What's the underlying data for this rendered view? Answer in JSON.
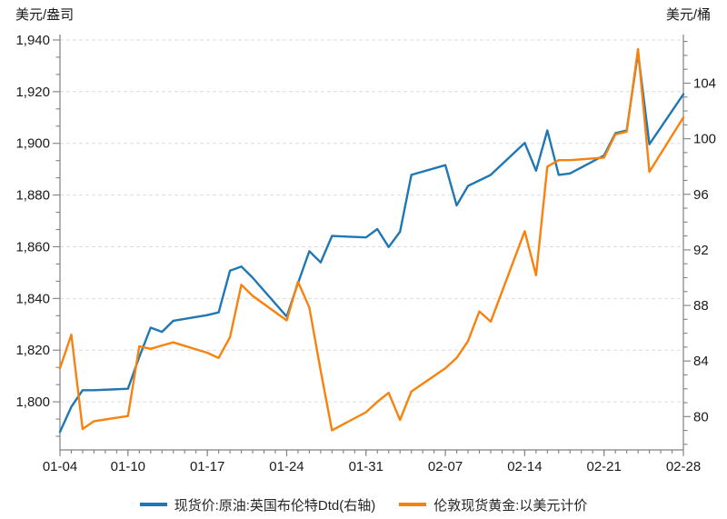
{
  "axis_titles": {
    "left": "美元/盎司",
    "right": "美元/桶"
  },
  "legend": {
    "items": [
      {
        "label": "现货价:原油:英国布伦特Dtd(右轴)",
        "color": "#1f77b4"
      },
      {
        "label": "伦敦现货黄金:以美元计价",
        "color": "#f7820e"
      }
    ]
  },
  "chart_data": {
    "type": "line",
    "title": "",
    "x": [
      "01-04",
      "01-05",
      "01-06",
      "01-07",
      "01-10",
      "01-11",
      "01-12",
      "01-13",
      "01-14",
      "01-17",
      "01-18",
      "01-19",
      "01-20",
      "01-21",
      "01-24",
      "01-25",
      "01-26",
      "01-27",
      "01-28",
      "01-31",
      "02-01",
      "02-02",
      "02-03",
      "02-04",
      "02-07",
      "02-08",
      "02-09",
      "02-10",
      "02-11",
      "02-14",
      "02-15",
      "02-16",
      "02-17",
      "02-18",
      "02-21",
      "02-22",
      "02-23",
      "02-24",
      "02-25",
      "02-28"
    ],
    "series": [
      {
        "name": "现货价:原油:英国布伦特Dtd(右轴)",
        "axis": "right",
        "color": "#1f77b4",
        "values": [
          78.9,
          80.7,
          81.9,
          81.9,
          82.0,
          84.3,
          86.4,
          86.1,
          86.9,
          87.3,
          87.5,
          90.5,
          90.8,
          90.0,
          87.2,
          89.6,
          91.9,
          91.1,
          93.0,
          92.9,
          93.5,
          92.2,
          93.3,
          97.4,
          98.1,
          95.2,
          96.6,
          97.0,
          97.4,
          99.7,
          97.7,
          100.6,
          97.4,
          97.5,
          98.8,
          100.4,
          100.6,
          106.2,
          99.6,
          103.2
        ]
      },
      {
        "name": "伦敦现货黄金:以美元计价",
        "axis": "left",
        "color": "#f7820e",
        "values": [
          1813,
          1826,
          1789.5,
          1792.5,
          1794.5,
          1821.5,
          1820.5,
          1821.8,
          1823,
          1819,
          1817,
          1825,
          1845.3,
          1841,
          1831.5,
          1846.5,
          1836.5,
          1812,
          1789,
          1796,
          1800,
          1803.5,
          1793,
          1804,
          1813,
          1817,
          1823.5,
          1835,
          1831,
          1866,
          1849,
          1891,
          1893.5,
          1893.5,
          1894.5,
          1903.5,
          1904.5,
          1936.5,
          1889,
          1910
        ]
      }
    ],
    "left_axis": {
      "label": "美元/盎司",
      "range": [
        1781.4,
        1942.1
      ],
      "major_ticks": [
        1800,
        1820,
        1840,
        1860,
        1880,
        1900,
        1920,
        1940
      ],
      "minor_step_fraction": 3
    },
    "right_axis": {
      "label": "美元/桶",
      "range": [
        77.6,
        107.5
      ],
      "major_ticks": [
        80,
        84,
        88,
        92,
        96,
        100,
        104
      ],
      "minor_step": 1
    },
    "x_axis": {
      "major_tick_labels": [
        "01-04",
        "01-10",
        "01-17",
        "01-24",
        "01-31",
        "02-07",
        "02-14",
        "02-21",
        "02-28"
      ],
      "calendar_span_days": 55,
      "minor_tick": "daily"
    },
    "grid": "horizontal-dashed",
    "legend_position": "bottom-center"
  },
  "style": {
    "grid_color": "#dcdcdc",
    "spine_color": "#808080",
    "tick_color": "#808080",
    "tick_label_color": "#1a1a1a",
    "line_width": 2.4
  }
}
